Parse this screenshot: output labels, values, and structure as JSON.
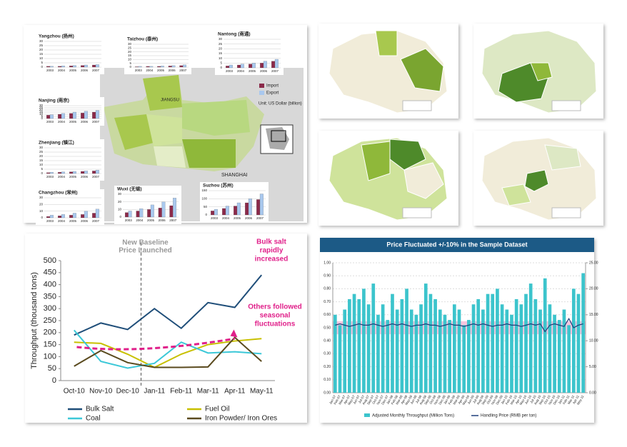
{
  "map_panel": {
    "legend": [
      "Import",
      "Export"
    ],
    "unit": "Unit: US Dollar (billion)",
    "labels": [
      "JIANGSU",
      "SHANGHAI"
    ]
  },
  "chart_data": [
    {
      "type": "line",
      "ylabel": "Throughput (thousand tons)",
      "categories": [
        "Oct-10",
        "Nov-10",
        "Dec-10",
        "Jan-11",
        "Feb-11",
        "Mar-11",
        "Apr-11",
        "May-11"
      ],
      "ylim": [
        0,
        500
      ],
      "yticks": [
        0,
        50,
        100,
        150,
        200,
        250,
        300,
        350,
        400,
        450,
        500
      ],
      "series": [
        {
          "name": "Bulk Salt",
          "color": "#1f4e79",
          "values": [
            190,
            240,
            213,
            300,
            218,
            325,
            305,
            440
          ]
        },
        {
          "name": "Fuel Oil",
          "color": "#c8c000",
          "values": [
            160,
            155,
            110,
            55,
            110,
            150,
            165,
            175
          ]
        },
        {
          "name": "Coal",
          "color": "#3cc8d8",
          "values": [
            210,
            80,
            52,
            72,
            160,
            115,
            120,
            112
          ]
        },
        {
          "name": "Iron Powder/ Iron Ores",
          "color": "#5a4a1e",
          "values": [
            60,
            125,
            75,
            55,
            55,
            57,
            180,
            80
          ]
        }
      ],
      "annotations": {
        "baseline": [
          "New Baseline",
          "Price Launched"
        ],
        "salt": [
          "Bulk salt",
          "rapidly",
          "increased"
        ],
        "others": [
          "Others followed",
          "seasonal",
          "fluctuations"
        ]
      }
    },
    {
      "type": "combo",
      "title": "Price Fluctuated +/-10% in the Sample Dataset",
      "categories": [
        "Jan-07",
        "Feb-07",
        "Mar-07",
        "Apr-07",
        "May-07",
        "Jun-07",
        "Jul-07",
        "Aug-07",
        "Sep-07",
        "Oct-07",
        "Nov-07",
        "Dec-07",
        "Jan-08",
        "Feb-08",
        "Mar-08",
        "Apr-08",
        "May-08",
        "Jun-08",
        "Jul-08",
        "Aug-08",
        "Sep-08",
        "Oct-08",
        "Nov-08",
        "Dec-08",
        "Jan-09",
        "Feb-09",
        "Mar-09",
        "Apr-09",
        "May-09",
        "Jun-09",
        "Jul-09",
        "Aug-09",
        "Sep-09",
        "Oct-09",
        "Nov-09",
        "Dec-09",
        "Jan-10",
        "Feb-10",
        "Mar-10",
        "Apr-10",
        "May-10",
        "Jun-10",
        "Jul-10",
        "Aug-10",
        "Sep-10",
        "Oct-10",
        "Nov-10",
        "Dec-10",
        "Jan-11",
        "Feb-11",
        "Mar-11",
        "Apr-11",
        "May-11"
      ],
      "ylim": [
        0,
        1
      ],
      "yticks": [
        {
          "value": 0,
          "label": "0.00"
        },
        {
          "value": 0.1,
          "label": "0.10"
        },
        {
          "value": 0.2,
          "label": "0.20"
        },
        {
          "value": 0.3,
          "label": "0.30"
        },
        {
          "value": 0.4,
          "label": "0.40"
        },
        {
          "value": 0.5,
          "label": "0.50"
        },
        {
          "value": 0.6,
          "label": "0.60"
        },
        {
          "value": 0.7,
          "label": "0.70"
        },
        {
          "value": 0.8,
          "label": "0.80"
        },
        {
          "value": 0.9,
          "label": "0.90"
        },
        {
          "value": 1,
          "label": "1.00"
        }
      ],
      "y2lim": [
        0,
        25
      ],
      "y2ticks": [
        {
          "value": 0,
          "label": "0.00"
        },
        {
          "value": 5,
          "label": "5.00"
        },
        {
          "value": 10,
          "label": "10.00"
        },
        {
          "value": 15,
          "label": "15.00"
        },
        {
          "value": 20,
          "label": "20.00"
        },
        {
          "value": 25,
          "label": "25.00"
        }
      ],
      "band": [
        0.45,
        0.55
      ],
      "series": [
        {
          "name": "Adjusted Monthly Throughput (Million Tons)",
          "color": "#3cc4cc",
          "axis": "y2",
          "values": [
            15,
            13,
            16,
            18,
            19,
            18,
            20,
            17,
            21,
            15,
            17,
            14,
            19,
            16,
            18,
            20,
            16,
            15,
            17,
            21,
            19,
            18,
            16,
            15,
            14,
            17,
            16,
            13,
            14,
            17,
            18,
            16,
            19,
            19,
            20,
            17,
            16,
            15,
            18,
            17,
            19,
            21,
            18,
            16,
            22,
            17,
            15,
            14,
            16,
            13,
            20,
            19,
            23
          ]
        },
        {
          "name": "Handling Price (RMB per ton)",
          "color": "#1f3f7a",
          "values": [
            0.52,
            0.53,
            0.52,
            0.51,
            0.52,
            0.53,
            0.52,
            0.52,
            0.53,
            0.52,
            0.51,
            0.52,
            0.53,
            0.52,
            0.53,
            0.52,
            0.51,
            0.52,
            0.52,
            0.53,
            0.52,
            0.52,
            0.51,
            0.52,
            0.53,
            0.52,
            0.52,
            0.51,
            0.52,
            0.53,
            0.52,
            0.53,
            0.52,
            0.51,
            0.52,
            0.52,
            0.53,
            0.52,
            0.52,
            0.51,
            0.52,
            0.53,
            0.52,
            0.53,
            0.47,
            0.52,
            0.53,
            0.52,
            0.51,
            0.57,
            0.5,
            0.52,
            0.53
          ]
        }
      ]
    },
    {
      "type": "minibar",
      "title": "Yangzhou (扬州)",
      "categories": [
        "2003",
        "2004",
        "2005",
        "2006",
        "2007"
      ],
      "ylim": [
        0,
        30
      ],
      "yticks": [
        0,
        5,
        10,
        15,
        20,
        25,
        30
      ],
      "series": [
        {
          "color": "#8b2a4a",
          "values": [
            1,
            1,
            1.5,
            2,
            2.5
          ]
        },
        {
          "color": "#a9c8ee",
          "values": [
            1,
            1.5,
            2,
            2.5,
            3
          ]
        }
      ]
    },
    {
      "type": "minibar",
      "title": "Taizhou (泰州)",
      "categories": [
        "2003",
        "2004",
        "2005",
        "2006",
        "2007"
      ],
      "ylim": [
        0,
        30
      ],
      "yticks": [
        0,
        5,
        10,
        15,
        20,
        25,
        30
      ],
      "series": [
        {
          "color": "#8b2a4a",
          "values": [
            0.5,
            1,
            1,
            1.5,
            2
          ]
        },
        {
          "color": "#a9c8ee",
          "values": [
            1,
            1,
            1.5,
            2,
            3
          ]
        }
      ]
    },
    {
      "type": "minibar",
      "title": "Nantong (南通)",
      "categories": [
        "2003",
        "2004",
        "2005",
        "2006",
        "2007"
      ],
      "ylim": [
        0,
        30
      ],
      "yticks": [
        0,
        5,
        10,
        15,
        20,
        25,
        30
      ],
      "series": [
        {
          "color": "#8b2a4a",
          "values": [
            2,
            3,
            4,
            5,
            7
          ]
        },
        {
          "color": "#a9c8ee",
          "values": [
            3,
            4,
            5,
            7,
            9
          ]
        }
      ]
    },
    {
      "type": "minibar",
      "title": "Nanjing (南京)",
      "categories": [
        "2003",
        "2004",
        "2005",
        "2006",
        "2007"
      ],
      "ylim": [
        0,
        30
      ],
      "yticks": [
        0,
        5,
        10,
        15,
        20,
        25,
        30
      ],
      "series": [
        {
          "color": "#8b2a4a",
          "values": [
            8,
            10,
            12,
            13,
            15
          ]
        },
        {
          "color": "#a9c8ee",
          "values": [
            9,
            12,
            15,
            17,
            19
          ]
        }
      ]
    },
    {
      "type": "minibar",
      "title": "Zhenjiang (镇江)",
      "categories": [
        "2003",
        "2004",
        "2005",
        "2006",
        "2007"
      ],
      "ylim": [
        0,
        30
      ],
      "yticks": [
        0,
        5,
        10,
        15,
        20,
        25,
        30
      ],
      "series": [
        {
          "color": "#8b2a4a",
          "values": [
            1,
            1.5,
            2,
            2.5,
            3
          ]
        },
        {
          "color": "#a9c8ee",
          "values": [
            1.5,
            2,
            2.5,
            3,
            4
          ]
        }
      ]
    },
    {
      "type": "minibar",
      "title": "Changzhou (常州)",
      "categories": [
        "2003",
        "2004",
        "2005",
        "2006",
        "2007"
      ],
      "ylim": [
        0,
        30
      ],
      "yticks": [
        0,
        10,
        20,
        30
      ],
      "series": [
        {
          "color": "#8b2a4a",
          "values": [
            2,
            3,
            4,
            5,
            7
          ]
        },
        {
          "color": "#a9c8ee",
          "values": [
            4,
            5,
            7,
            10,
            13
          ]
        }
      ]
    },
    {
      "type": "minibar",
      "title": "Wuxi (无锡)",
      "categories": [
        "2003",
        "2004",
        "2005",
        "2006",
        "2007"
      ],
      "ylim": [
        0,
        30
      ],
      "yticks": [
        0,
        10,
        20,
        30
      ],
      "series": [
        {
          "color": "#8b2a4a",
          "values": [
            6,
            8,
            10,
            12,
            15
          ]
        },
        {
          "color": "#a9c8ee",
          "values": [
            8,
            11,
            16,
            20,
            25
          ]
        }
      ]
    },
    {
      "type": "minibar",
      "title": "Suzhou (苏州)",
      "categories": [
        "2003",
        "2004",
        "2005",
        "2006",
        "2007"
      ],
      "ylim": [
        0,
        150
      ],
      "yticks": [
        0,
        50,
        100,
        150
      ],
      "series": [
        {
          "color": "#8b2a4a",
          "values": [
            25,
            40,
            55,
            75,
            95
          ]
        },
        {
          "color": "#a9c8ee",
          "values": [
            35,
            55,
            75,
            100,
            130
          ]
        }
      ]
    }
  ]
}
